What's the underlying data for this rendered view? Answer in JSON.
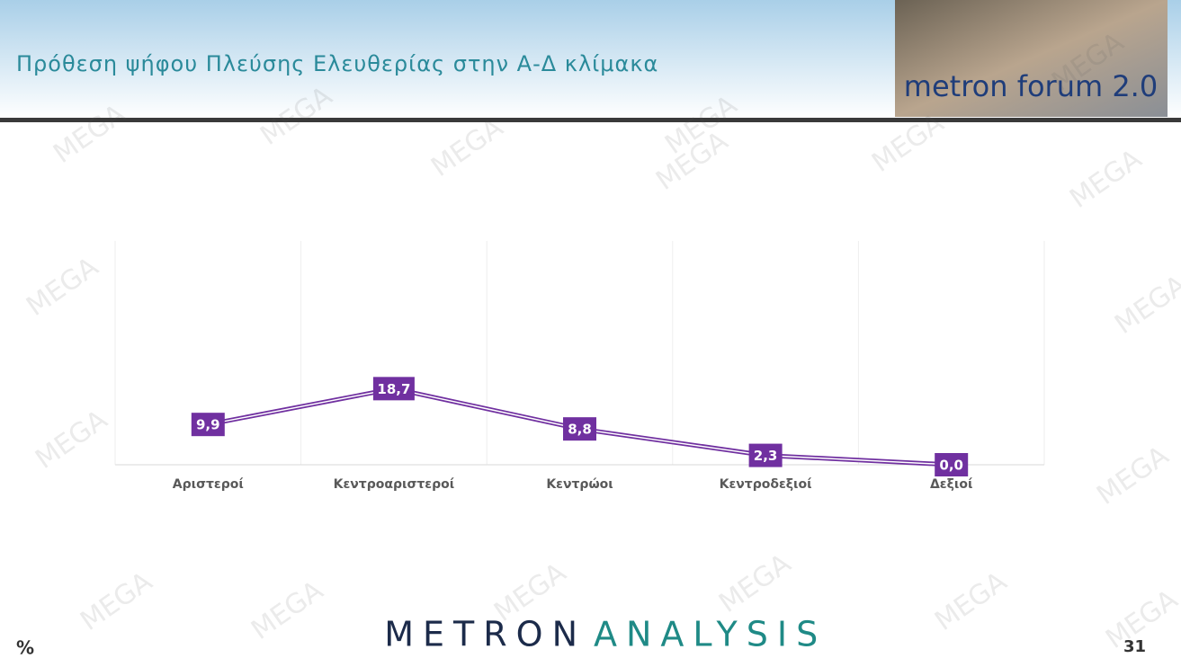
{
  "chart_data": {
    "type": "line",
    "title": "Πρόθεση ψήφου Πλεύσης Ελευθερίας στην Α-Δ κλίμακα",
    "categories": [
      "Αριστεροί",
      "Κεντροαριστεροί",
      "Κεντρώοι",
      "Κεντροδεξιοί",
      "Δεξιοί"
    ],
    "series": [
      {
        "color": "#7030a0",
        "values": [
          9.9,
          18.7,
          8.8,
          2.3,
          0.0
        ],
        "value_labels": [
          "9,9",
          "18,7",
          "8,8",
          "2,3",
          "0,0"
        ]
      }
    ],
    "ylim": [
      0,
      55
    ],
    "grid": true
  },
  "page": {
    "unit": "%",
    "page_number": 31,
    "banner": "metron forum 2.0",
    "logo_left": "METRON",
    "logo_right": "ANALYSIS",
    "watermark": "MEGA"
  }
}
